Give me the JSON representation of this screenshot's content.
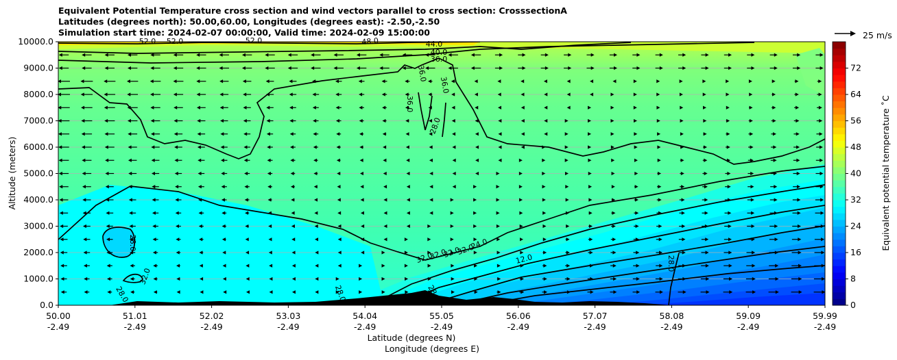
{
  "title_lines": [
    "Equivalent Potential Temperature cross section and wind vectors parallel to cross section: CrosssectionA",
    "Latitudes (degrees north): 50.00,60.00, Longitudes (degrees east): -2.50,-2.50",
    "Simulation start time: 2024-02-07 00:00:00, Valid time: 2024-02-09 15:00:00"
  ],
  "chart_data": {
    "type": "heatmap",
    "subtype": "filled contour cross section with wind vectors",
    "x_tick_labels": [
      [
        "50.00",
        "-2.49"
      ],
      [
        "51.01",
        "-2.49"
      ],
      [
        "52.02",
        "-2.49"
      ],
      [
        "53.03",
        "-2.49"
      ],
      [
        "54.04",
        "-2.49"
      ],
      [
        "55.05",
        "-2.49"
      ],
      [
        "56.06",
        "-2.49"
      ],
      [
        "57.07",
        "-2.49"
      ],
      [
        "58.08",
        "-2.49"
      ],
      [
        "59.09",
        "-2.49"
      ],
      [
        "59.99",
        "-2.49"
      ]
    ],
    "x_range": [
      50.0,
      59.99
    ],
    "xlabel": "Latitude (degrees N)",
    "xlabel2": "Longitude (degrees E)",
    "ylabel": "Altitude (meters)",
    "ylim": [
      0,
      10000
    ],
    "y_ticks": [
      "0.0",
      "1000.0",
      "2000.0",
      "3000.0",
      "4000.0",
      "5000.0",
      "6000.0",
      "7000.0",
      "8000.0",
      "9000.0",
      "10000.0"
    ],
    "grid": "horizontal",
    "colorbar": {
      "label": "Equivalent potential temperature ˚C",
      "range": [
        0,
        80
      ],
      "ticks": [
        "0",
        "8",
        "16",
        "24",
        "32",
        "40",
        "48",
        "56",
        "64",
        "72"
      ],
      "colormap": "jet"
    },
    "quiver_key": {
      "label": "25 m/s",
      "position": "top-right"
    },
    "contour_levels": [
      12,
      16,
      20,
      24,
      28,
      32,
      36,
      40,
      44,
      48,
      52,
      56
    ],
    "contour_labels": [
      "52.0",
      "52.0",
      "52.0",
      "48.0",
      "44.0",
      "40.0",
      "36.0",
      "36.0",
      "36.0",
      "36.0",
      "28.0",
      "28.0",
      "32.0",
      "32.0",
      "32.0",
      "32.0",
      "32.0",
      "24.0",
      "12.0",
      "28.0",
      "28.0",
      "28.0",
      "28.0"
    ],
    "surface_fill": "terrain shown in black along x-axis"
  },
  "colors": {
    "contour": "#000000",
    "terrain": "#000000",
    "grid": "#b0b0b0"
  }
}
